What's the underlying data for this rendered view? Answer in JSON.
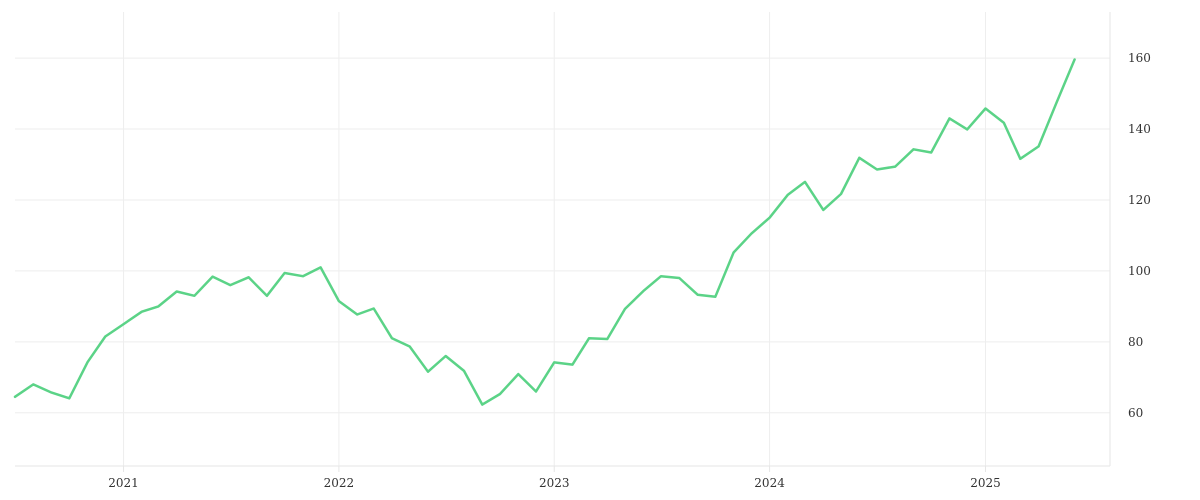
{
  "chart_data": {
    "type": "line",
    "title": "",
    "xlabel": "",
    "ylabel": "",
    "grid": true,
    "legend": "none",
    "y_axis_side": "right",
    "x_ticks": [
      "2021",
      "2022",
      "2023",
      "2024",
      "2025"
    ],
    "y_ticks": [
      60,
      80,
      100,
      120,
      140,
      160
    ],
    "xlim": [
      "2020-07-01",
      "2025-07-31"
    ],
    "ylim": [
      45,
      173
    ],
    "series": [
      {
        "color": "#5bd387",
        "points": [
          [
            "2020-07-01",
            64.5
          ],
          [
            "2020-08-01",
            68.0
          ],
          [
            "2020-09-01",
            65.7
          ],
          [
            "2020-10-01",
            64.1
          ],
          [
            "2020-11-01",
            74.3
          ],
          [
            "2020-12-01",
            81.5
          ],
          [
            "2021-01-01",
            85.0
          ],
          [
            "2021-02-01",
            88.5
          ],
          [
            "2021-03-01",
            90.0
          ],
          [
            "2021-04-01",
            94.2
          ],
          [
            "2021-05-01",
            93.0
          ],
          [
            "2021-06-01",
            98.4
          ],
          [
            "2021-07-01",
            96.0
          ],
          [
            "2021-08-01",
            98.2
          ],
          [
            "2021-09-01",
            93.0
          ],
          [
            "2021-10-01",
            99.4
          ],
          [
            "2021-11-01",
            98.5
          ],
          [
            "2021-12-01",
            101.0
          ],
          [
            "2022-01-01",
            91.5
          ],
          [
            "2022-02-01",
            87.7
          ],
          [
            "2022-03-01",
            89.4
          ],
          [
            "2022-04-01",
            81.0
          ],
          [
            "2022-05-01",
            78.7
          ],
          [
            "2022-06-01",
            71.6
          ],
          [
            "2022-07-01",
            76.0
          ],
          [
            "2022-08-01",
            71.8
          ],
          [
            "2022-09-01",
            62.3
          ],
          [
            "2022-10-01",
            65.3
          ],
          [
            "2022-11-01",
            70.9
          ],
          [
            "2022-12-01",
            66.0
          ],
          [
            "2023-01-01",
            74.2
          ],
          [
            "2023-02-01",
            73.6
          ],
          [
            "2023-03-01",
            81.0
          ],
          [
            "2023-04-01",
            80.8
          ],
          [
            "2023-05-01",
            89.3
          ],
          [
            "2023-06-01",
            94.3
          ],
          [
            "2023-07-01",
            98.5
          ],
          [
            "2023-08-01",
            98.0
          ],
          [
            "2023-09-01",
            93.3
          ],
          [
            "2023-10-01",
            92.7
          ],
          [
            "2023-11-01",
            105.2
          ],
          [
            "2023-12-01",
            110.5
          ],
          [
            "2024-01-01",
            115.0
          ],
          [
            "2024-02-01",
            121.5
          ],
          [
            "2024-03-01",
            125.1
          ],
          [
            "2024-04-01",
            117.2
          ],
          [
            "2024-05-01",
            121.7
          ],
          [
            "2024-06-01",
            131.9
          ],
          [
            "2024-07-01",
            128.6
          ],
          [
            "2024-08-01",
            129.4
          ],
          [
            "2024-09-01",
            134.3
          ],
          [
            "2024-10-01",
            133.4
          ],
          [
            "2024-11-01",
            143.0
          ],
          [
            "2024-12-01",
            139.9
          ],
          [
            "2025-01-01",
            145.8
          ],
          [
            "2025-02-01",
            141.8
          ],
          [
            "2025-03-01",
            131.6
          ],
          [
            "2025-04-01",
            135.1
          ],
          [
            "2025-05-01",
            147.3
          ],
          [
            "2025-06-01",
            159.6
          ]
        ]
      }
    ]
  }
}
